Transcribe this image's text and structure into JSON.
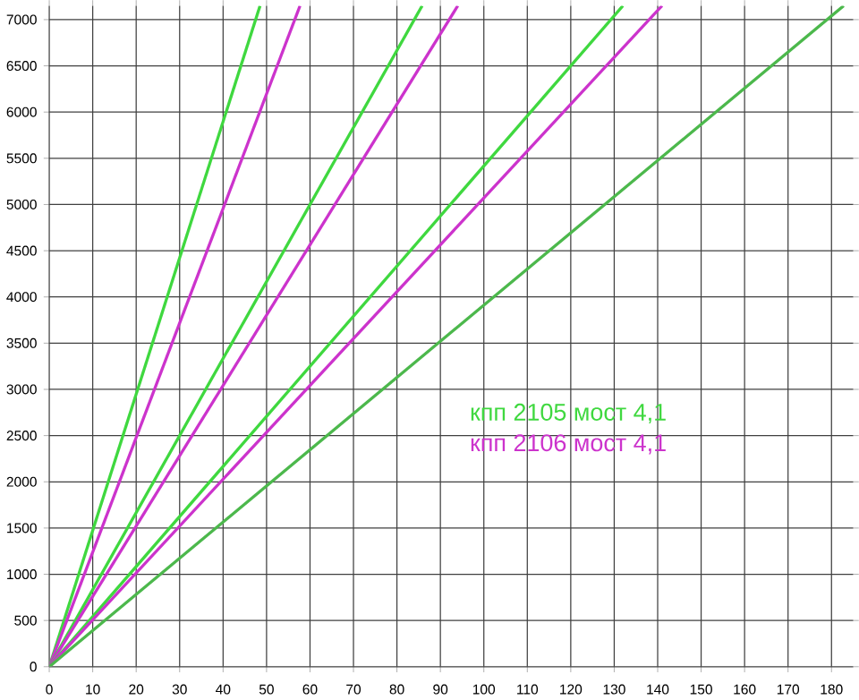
{
  "chart_data": {
    "type": "line",
    "xlim": [
      0,
      185
    ],
    "ylim": [
      0,
      7150
    ],
    "xticks": [
      0,
      10,
      20,
      30,
      40,
      50,
      60,
      70,
      80,
      90,
      100,
      110,
      120,
      130,
      140,
      150,
      160,
      170,
      180
    ],
    "yticks": [
      0,
      500,
      1000,
      1500,
      2000,
      2500,
      3000,
      3500,
      4000,
      4500,
      5000,
      5500,
      6000,
      6500,
      7000
    ],
    "grid": true,
    "legend": "right",
    "series": [
      {
        "name": "кпп 2105 мост 4,1",
        "color": "#3fd83f",
        "x": [
          0,
          48.5
        ],
        "values": [
          0,
          7150
        ]
      },
      {
        "name": "кпп 2106 мост 4,1",
        "color": "#cc33cc",
        "x": [
          0,
          57.7
        ],
        "values": [
          0,
          7150
        ]
      },
      {
        "color": "#3fd83f",
        "x": [
          0,
          85.8
        ],
        "values": [
          0,
          7150
        ]
      },
      {
        "color": "#cc33cc",
        "x": [
          0,
          94
        ],
        "values": [
          0,
          7150
        ]
      },
      {
        "color": "#3fd83f",
        "x": [
          0,
          132
        ],
        "values": [
          0,
          7150
        ]
      },
      {
        "color": "#cc33cc",
        "x": [
          0,
          141
        ],
        "values": [
          0,
          7150
        ]
      },
      {
        "color": "#4cb84c",
        "x": [
          0,
          182.8
        ],
        "values": [
          0,
          7150
        ]
      }
    ]
  }
}
